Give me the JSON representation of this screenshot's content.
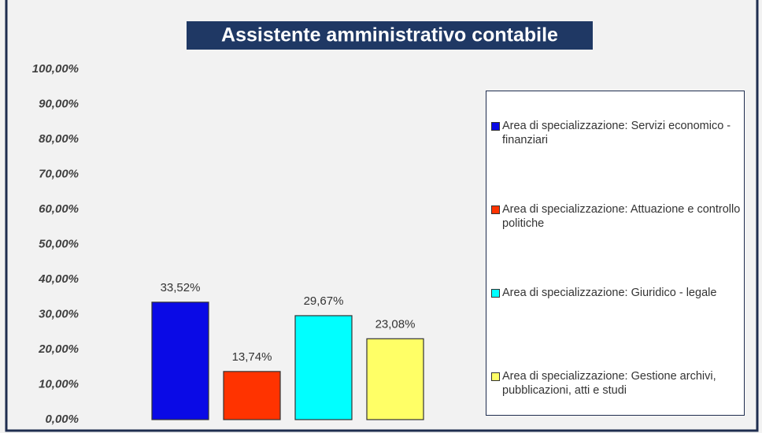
{
  "chart_data": {
    "type": "bar",
    "title": "Assistente amministrativo contabile",
    "categories": [
      null
    ],
    "series": [
      {
        "name": "Area di specializzazione: Servizi economico - finanziari",
        "color": "#0a0ae6",
        "values": [
          33.52
        ],
        "value_labels": [
          "33,52%"
        ]
      },
      {
        "name": "Area di specializzazione: Attuazione e controllo politiche",
        "color": "#ff3300",
        "values": [
          13.74
        ],
        "value_labels": [
          "13,74%"
        ]
      },
      {
        "name": "Area di specializzazione: Giuridico - legale",
        "color": "#00ffff",
        "values": [
          29.67
        ],
        "value_labels": [
          "29,67%"
        ]
      },
      {
        "name": "Area di specializzazione: Gestione archivi, pubblicazioni, atti e studi",
        "color": "#ffff66",
        "values": [
          23.08
        ],
        "value_labels": [
          "23,08%"
        ]
      }
    ],
    "ylim": [
      0,
      100
    ],
    "yticks": [
      {
        "value": 0,
        "label": "0,00%"
      },
      {
        "value": 10,
        "label": "10,00%"
      },
      {
        "value": 20,
        "label": "20,00%"
      },
      {
        "value": 30,
        "label": "30,00%"
      },
      {
        "value": 40,
        "label": "40,00%"
      },
      {
        "value": 50,
        "label": "50,00%"
      },
      {
        "value": 60,
        "label": "60,00%"
      },
      {
        "value": 70,
        "label": "70,00%"
      },
      {
        "value": 80,
        "label": "80,00%"
      },
      {
        "value": 90,
        "label": "90,00%"
      },
      {
        "value": 100,
        "label": "100,00%"
      }
    ],
    "grid": false,
    "legend": "right"
  }
}
